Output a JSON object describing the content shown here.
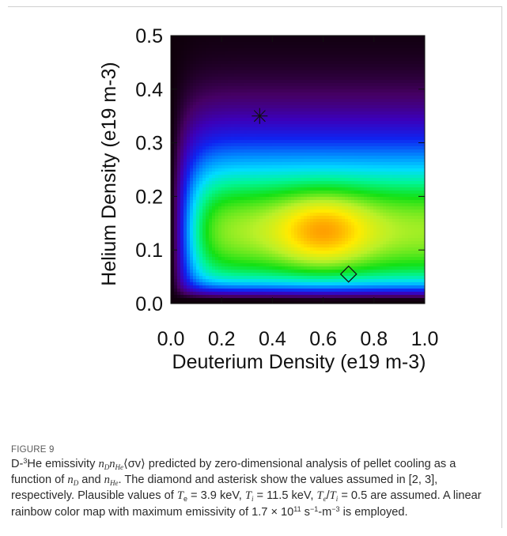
{
  "chart_data": {
    "type": "heatmap",
    "xlabel": "Deuterium Density (e19 m-3)",
    "ylabel": "Helium Density (e19 m-3)",
    "xlim": [
      0.0,
      1.0
    ],
    "ylim": [
      0.0,
      0.5
    ],
    "x_ticks": [
      "0.0",
      "0.2",
      "0.4",
      "0.6",
      "0.8",
      "1.0"
    ],
    "y_ticks": [
      "0.0",
      "0.1",
      "0.2",
      "0.3",
      "0.4",
      "0.5"
    ],
    "colormap": "linear rainbow",
    "peak": {
      "x": 0.6,
      "y": 0.135
    },
    "markers": [
      {
        "kind": "asterisk",
        "x": 0.35,
        "y": 0.35
      },
      {
        "kind": "diamond",
        "x": 0.7,
        "y": 0.055
      }
    ]
  },
  "caption": {
    "figure_label": "FIGURE 9",
    "p1": "D-",
    "sup_3": "3",
    "p2": "He emissivity ",
    "n": "n",
    "sub_D": "D",
    "sub_He": "He",
    "p3": "⟨σv⟩ predicted by zero-dimensional analysis of pellet cooling as a function of ",
    "p4": " and ",
    "p5": ". The diamond and asterisk show the values assumed in [2, 3], respectively. Plausible values of ",
    "T": "T",
    "sub_e": "e",
    "sub_i": "i",
    "p6": " = 3.9 keV, ",
    "p7": " = 11.5 keV, ",
    "p8": "/",
    "p9": " = 0.5 are assumed. A linear rainbow color map with maximum emissivity of 1.7 × 10",
    "sup_11": "11",
    "p10": " s",
    "sup_m1": "−1",
    "p11": "-m",
    "sup_m3": "−3",
    "p12": " is employed."
  }
}
